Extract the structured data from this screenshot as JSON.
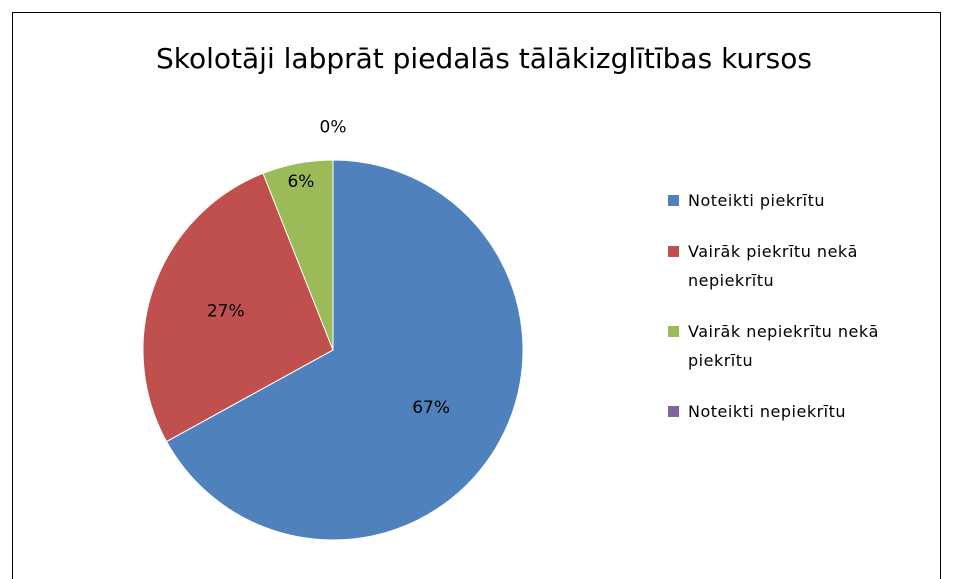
{
  "chart_data": {
    "type": "pie",
    "title": "Skolotāji labprāt piedalās tālākizglītības kursos",
    "categories": [
      "Noteikti piekrītu",
      "Vairāk piekrītu nekā nepiekrītu",
      "Vairāk nepiekrītu nekā piekrītu",
      "Noteikti nepiekrītu"
    ],
    "values": [
      67,
      27,
      6,
      0
    ],
    "value_labels": [
      "67%",
      "27%",
      "6%",
      "0%"
    ],
    "colors": [
      "#4f81bd",
      "#c0504d",
      "#9bbb59",
      "#8064a2"
    ],
    "legend": "right"
  }
}
